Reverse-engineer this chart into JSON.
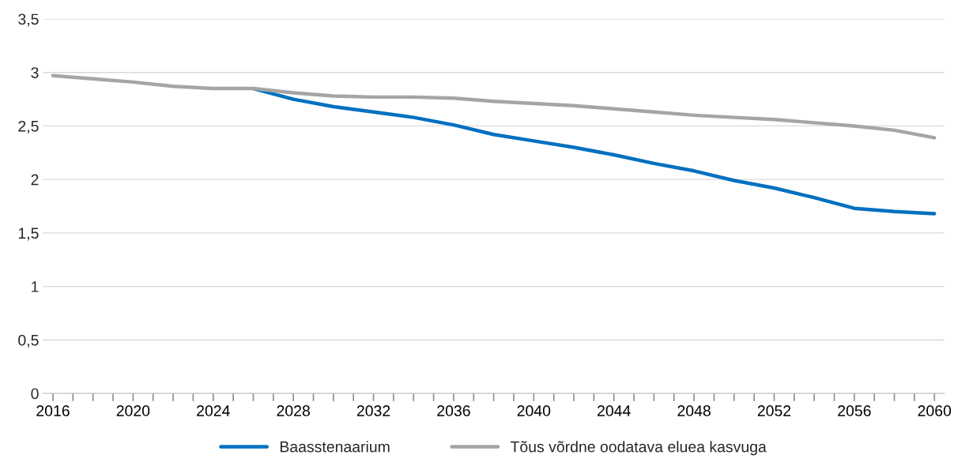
{
  "chart_data": {
    "type": "line",
    "x": [
      2016,
      2018,
      2020,
      2022,
      2024,
      2026,
      2028,
      2030,
      2032,
      2034,
      2036,
      2038,
      2040,
      2042,
      2044,
      2046,
      2048,
      2050,
      2052,
      2054,
      2056,
      2058,
      2060
    ],
    "series": [
      {
        "name": "Baasstenaarium",
        "color": "#0070c0",
        "values": [
          null,
          null,
          null,
          null,
          null,
          2.85,
          2.75,
          2.68,
          2.63,
          2.58,
          2.51,
          2.42,
          2.36,
          2.3,
          2.23,
          2.15,
          2.08,
          1.99,
          1.92,
          1.83,
          1.73,
          1.7,
          1.68
        ]
      },
      {
        "name": "Tõus võrdne oodatava eluea kasvuga",
        "color": "#a5a5a5",
        "values": [
          2.97,
          2.94,
          2.91,
          2.87,
          2.85,
          2.85,
          2.81,
          2.78,
          2.77,
          2.77,
          2.76,
          2.73,
          2.71,
          2.69,
          2.66,
          2.63,
          2.6,
          2.58,
          2.56,
          2.53,
          2.5,
          2.46,
          2.39
        ]
      }
    ],
    "xlim": [
      2015.5,
      2060.5
    ],
    "xticks": [
      2016,
      {
        "value": 2017,
        "label": null
      },
      {
        "value": 2018,
        "label": null
      },
      {
        "value": 2019,
        "label": null
      },
      2020,
      {
        "value": 2021,
        "label": null
      },
      {
        "value": 2022,
        "label": null
      },
      {
        "value": 2023,
        "label": null
      },
      2024,
      {
        "value": 2025,
        "label": null
      },
      {
        "value": 2026,
        "label": null
      },
      {
        "value": 2027,
        "label": null
      },
      2028,
      {
        "value": 2029,
        "label": null
      },
      {
        "value": 2030,
        "label": null
      },
      {
        "value": 2031,
        "label": null
      },
      2032,
      {
        "value": 2033,
        "label": null
      },
      {
        "value": 2034,
        "label": null
      },
      {
        "value": 2035,
        "label": null
      },
      2036,
      {
        "value": 2037,
        "label": null
      },
      {
        "value": 2038,
        "label": null
      },
      {
        "value": 2039,
        "label": null
      },
      2040,
      {
        "value": 2041,
        "label": null
      },
      {
        "value": 2042,
        "label": null
      },
      {
        "value": 2043,
        "label": null
      },
      2044,
      {
        "value": 2045,
        "label": null
      },
      {
        "value": 2046,
        "label": null
      },
      {
        "value": 2047,
        "label": null
      },
      2048,
      {
        "value": 2049,
        "label": null
      },
      {
        "value": 2050,
        "label": null
      },
      {
        "value": 2051,
        "label": null
      },
      2052,
      {
        "value": 2053,
        "label": null
      },
      {
        "value": 2054,
        "label": null
      },
      {
        "value": 2055,
        "label": null
      },
      2056,
      {
        "value": 2057,
        "label": null
      },
      {
        "value": 2058,
        "label": null
      },
      {
        "value": 2059,
        "label": null
      },
      2060
    ],
    "ylim": [
      0,
      3.5
    ],
    "yticks": [
      0,
      {
        "value": 0.5,
        "label": "0,5"
      },
      1,
      {
        "value": 1.5,
        "label": "1,5"
      },
      2,
      {
        "value": 2.5,
        "label": "2,5"
      },
      3,
      {
        "value": 3.5,
        "label": "3,5"
      }
    ],
    "grid": "y",
    "legend": "bottom",
    "marker": "none",
    "line_style": "solid"
  }
}
